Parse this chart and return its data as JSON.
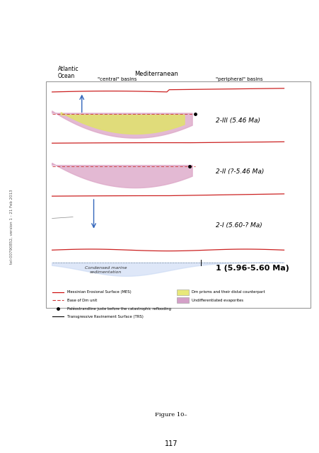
{
  "bg_color": "#f0f4f8",
  "page_bg": "#ffffff",
  "figure_caption": "Figure 10–",
  "page_number": "117",
  "sidebar_text": "tel-00790852, version 1 - 21 Feb 2013",
  "diagram_title_left": "Atlantic\nOcean",
  "diagram_title_center": "Mediterranean",
  "diagram_header_central": "\"central\" basins",
  "diagram_header_peripheral": "\"peripheral\" basins",
  "labels": [
    "2-III (5.46 Ma)",
    "2-II (?-5.46 Ma)",
    "2-I (5.60-? Ma)",
    "1 (5.96-5.60 Ma)"
  ],
  "legend_items": [
    {
      "color": "#cc0000",
      "linestyle": "solid",
      "label": "Messinian Erosional Surface (MES)"
    },
    {
      "color": "#cc3333",
      "linestyle": "dashed",
      "label": "Base of Dm unit"
    },
    {
      "color": "#000000",
      "marker": "o",
      "label": "Paléostrandline juste before the catastrophic reflooding"
    },
    {
      "color": "#000000",
      "linestyle": "solid",
      "label": "Transgressive Ravinement Surface (TRS)"
    }
  ],
  "legend_patches": [
    {
      "color": "#e8e87a",
      "label": "Dm prisms and their distal counterpart"
    },
    {
      "color": "#d4a0c8",
      "label": "Undifferentiated evaporites"
    }
  ],
  "colors": {
    "red_surface": "#d44444",
    "pink_fill": "#e8a8c0",
    "yellow_fill": "#e8e87a",
    "blue_fill": "#c8d8f0",
    "light_blue_fill": "#d8e8f8",
    "dashed_line": "#cc3333",
    "arrow_blue": "#5588cc",
    "ocean_blue": "#b8cce4"
  }
}
